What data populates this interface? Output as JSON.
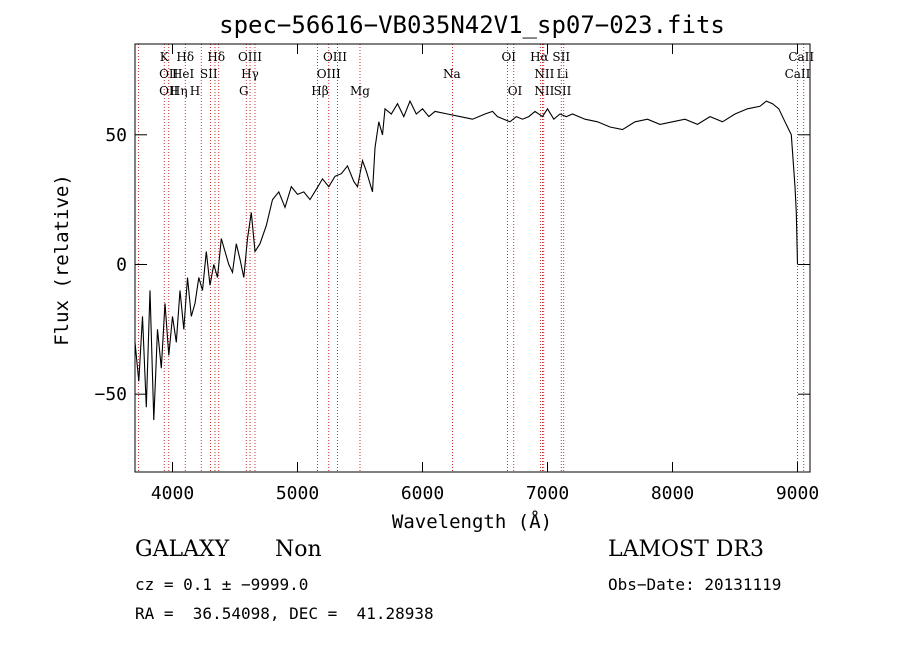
{
  "chart_data": {
    "type": "line",
    "title": "spec−56616−VB035N42V1_sp07−023.fits",
    "xlabel": "Wavelength (Å)",
    "ylabel": "Flux (relative)",
    "xlim": [
      3700,
      9100
    ],
    "ylim": [
      -80,
      85
    ],
    "xticks": [
      {
        "value": 4000,
        "label": "4000"
      },
      {
        "value": 5000,
        "label": "5000"
      },
      {
        "value": 6000,
        "label": "6000"
      },
      {
        "value": 7000,
        "label": "7000"
      },
      {
        "value": 8000,
        "label": "8000"
      },
      {
        "value": 9000,
        "label": "9000"
      }
    ],
    "yticks": [
      {
        "value": -50,
        "label": "−50"
      },
      {
        "value": 0,
        "label": "0"
      },
      {
        "value": 50,
        "label": "50"
      }
    ],
    "series": [
      {
        "name": "flux",
        "x": [
          3700,
          3730,
          3760,
          3790,
          3820,
          3850,
          3880,
          3910,
          3940,
          3970,
          4000,
          4030,
          4060,
          4090,
          4120,
          4150,
          4180,
          4210,
          4240,
          4270,
          4300,
          4330,
          4360,
          4390,
          4420,
          4450,
          4480,
          4510,
          4540,
          4570,
          4600,
          4630,
          4660,
          4700,
          4750,
          4800,
          4850,
          4900,
          4950,
          5000,
          5050,
          5100,
          5150,
          5200,
          5250,
          5300,
          5350,
          5400,
          5450,
          5480,
          5520,
          5550,
          5600,
          5620,
          5650,
          5680,
          5700,
          5750,
          5800,
          5850,
          5900,
          5950,
          6000,
          6050,
          6100,
          6200,
          6300,
          6400,
          6500,
          6560,
          6600,
          6650,
          6700,
          6750,
          6800,
          6850,
          6900,
          6960,
          7000,
          7050,
          7100,
          7150,
          7200,
          7300,
          7400,
          7500,
          7600,
          7700,
          7800,
          7900,
          8000,
          8100,
          8200,
          8300,
          8400,
          8500,
          8600,
          8700,
          8750,
          8800,
          8850,
          8900,
          8950,
          8980,
          8990,
          9000
        ],
        "y": [
          -30,
          -45,
          -20,
          -55,
          -10,
          -60,
          -25,
          -40,
          -15,
          -35,
          -20,
          -30,
          -10,
          -25,
          -5,
          -20,
          -15,
          -5,
          -10,
          5,
          -8,
          0,
          -5,
          10,
          5,
          0,
          -3,
          8,
          2,
          -5,
          10,
          20,
          5,
          8,
          15,
          25,
          28,
          22,
          30,
          27,
          28,
          25,
          29,
          33,
          30,
          34,
          35,
          38,
          32,
          30,
          40,
          36,
          28,
          45,
          55,
          50,
          60,
          58,
          62,
          57,
          63,
          58,
          60,
          57,
          59,
          58,
          57,
          56,
          58,
          59,
          57,
          56,
          55,
          57,
          56,
          57,
          59,
          57,
          60,
          56,
          58,
          57,
          58,
          56,
          55,
          53,
          52,
          55,
          56,
          54,
          55,
          56,
          54,
          57,
          55,
          58,
          60,
          61,
          63,
          62,
          60,
          55,
          50,
          30,
          20,
          0
        ]
      }
    ],
    "annotations": [
      {
        "label": "Hδ",
        "wavelength": 4102,
        "row": 0
      },
      {
        "label": "K",
        "wavelength": 3934,
        "row": 0
      },
      {
        "label": "Hδ",
        "wavelength": 4350,
        "row": 0
      },
      {
        "label": "OIII",
        "wavelength": 4620,
        "row": 0
      },
      {
        "label": "OIII",
        "wavelength": 5300,
        "row": 0
      },
      {
        "label": "OI",
        "wavelength": 6690,
        "row": 0
      },
      {
        "label": "Hα",
        "wavelength": 6935,
        "row": 0
      },
      {
        "label": "SII",
        "wavelength": 7110,
        "row": 0
      },
      {
        "label": "CaII",
        "wavelength": 9030,
        "row": 0
      },
      {
        "label": "OII",
        "wavelength": 3970,
        "row": 1
      },
      {
        "label": "HeI",
        "wavelength": 4085,
        "row": 1
      },
      {
        "label": "SII",
        "wavelength": 4290,
        "row": 1
      },
      {
        "label": "Hγ",
        "wavelength": 4620,
        "row": 1
      },
      {
        "label": "OIII",
        "wavelength": 5250,
        "row": 1
      },
      {
        "label": "Na",
        "wavelength": 6235,
        "row": 1
      },
      {
        "label": "NII",
        "wavelength": 6975,
        "row": 1
      },
      {
        "label": "Li",
        "wavelength": 7120,
        "row": 1
      },
      {
        "label": "CaII",
        "wavelength": 9000,
        "row": 1
      },
      {
        "label": "OII",
        "wavelength": 3970,
        "row": 2
      },
      {
        "label": "Hη",
        "wavelength": 4050,
        "row": 2
      },
      {
        "label": "H",
        "wavelength": 4180,
        "row": 2
      },
      {
        "label": "G",
        "wavelength": 4570,
        "row": 2
      },
      {
        "label": "Hβ",
        "wavelength": 5180,
        "row": 2
      },
      {
        "label": "Mg",
        "wavelength": 5500,
        "row": 2
      },
      {
        "label": "OI",
        "wavelength": 6740,
        "row": 2
      },
      {
        "label": "NII",
        "wavelength": 6975,
        "row": 2
      },
      {
        "label": "SII",
        "wavelength": 7120,
        "row": 2
      }
    ],
    "lines": [
      3727,
      3934,
      3970,
      4102,
      4230,
      4304,
      4340,
      4370,
      4590,
      4620,
      4660,
      5160,
      5250,
      5320,
      5500,
      6240,
      6680,
      6730,
      6945,
      6960,
      6970,
      7110,
      7130,
      9000,
      9050
    ]
  },
  "info": {
    "object_class": "GALAXY",
    "subclass": "Non",
    "survey": "LAMOST DR3",
    "cz_line": "cz = 0.1 ± −9999.0",
    "obs_date": "Obs−Date: 20131119",
    "coords": "RA =  36.54098, DEC =  41.28938"
  }
}
